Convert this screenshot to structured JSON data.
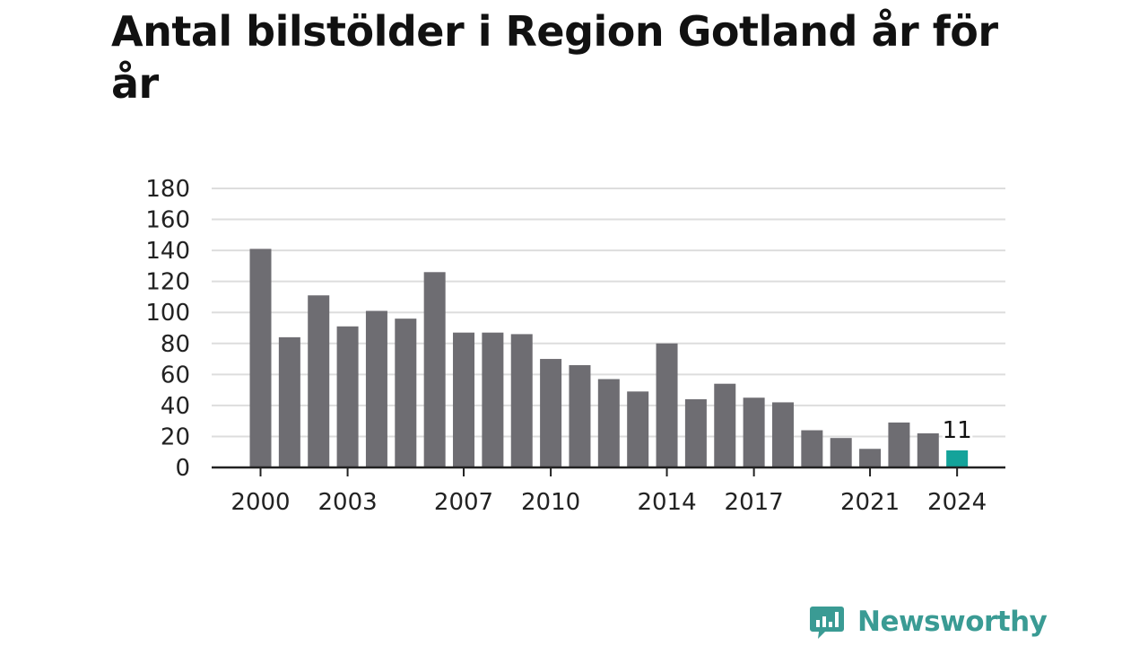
{
  "title": "Antal bilstölder i Region Gotland år för år",
  "brand": {
    "name": "Newsworthy",
    "icon": "bar-chart-speech-icon",
    "color": "#3a9b94"
  },
  "chart_data": {
    "type": "bar",
    "title": "Antal bilstölder i Region Gotland år för år",
    "xlabel": "",
    "ylabel": "",
    "ylim": [
      0,
      180
    ],
    "yticks": [
      0,
      20,
      40,
      60,
      80,
      100,
      120,
      140,
      160,
      180
    ],
    "xtick_labels": [
      "2000",
      "2003",
      "2007",
      "2010",
      "2014",
      "2017",
      "2021",
      "2024"
    ],
    "grid": true,
    "categories": [
      "2000",
      "2001",
      "2002",
      "2003",
      "2004",
      "2005",
      "2006",
      "2007",
      "2008",
      "2009",
      "2010",
      "2011",
      "2012",
      "2013",
      "2014",
      "2015",
      "2016",
      "2017",
      "2018",
      "2019",
      "2020",
      "2021",
      "2022",
      "2023",
      "2024"
    ],
    "values": [
      141,
      84,
      111,
      91,
      101,
      96,
      126,
      87,
      87,
      86,
      70,
      66,
      57,
      49,
      80,
      44,
      54,
      45,
      42,
      24,
      19,
      12,
      29,
      22,
      11
    ],
    "bar_color": "#6e6d72",
    "highlight": {
      "category": "2024",
      "color": "#14a39a",
      "label": "11"
    }
  }
}
